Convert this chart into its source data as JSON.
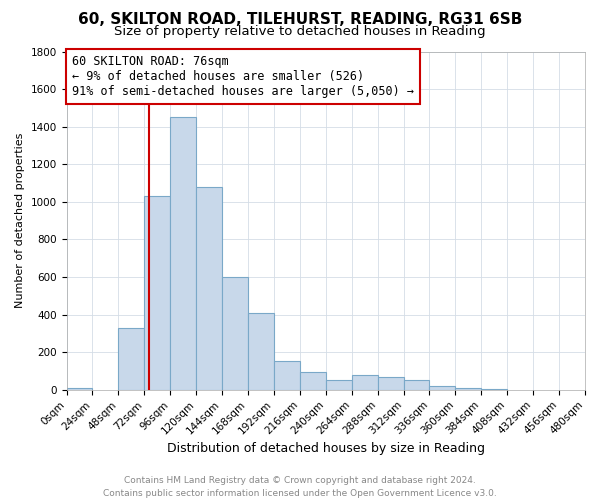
{
  "title_line1": "60, SKILTON ROAD, TILEHURST, READING, RG31 6SB",
  "title_line2": "Size of property relative to detached houses in Reading",
  "xlabel": "Distribution of detached houses by size in Reading",
  "ylabel": "Number of detached properties",
  "bin_edges": [
    0,
    24,
    48,
    72,
    96,
    120,
    144,
    168,
    192,
    216,
    240,
    264,
    288,
    312,
    336,
    360,
    384,
    408,
    432,
    456,
    480
  ],
  "bar_heights": [
    10,
    0,
    330,
    1030,
    1450,
    1080,
    600,
    410,
    155,
    95,
    50,
    80,
    70,
    50,
    20,
    10,
    5,
    0,
    0,
    0
  ],
  "bar_color": "#c8d8ea",
  "bar_edge_color": "#7aa8c8",
  "bar_linewidth": 0.8,
  "property_line_x": 76,
  "property_line_color": "#cc0000",
  "annotation_text": "60 SKILTON ROAD: 76sqm\n← 9% of detached houses are smaller (526)\n91% of semi-detached houses are larger (5,050) →",
  "annotation_box_color": "#ffffff",
  "annotation_box_edge": "#cc0000",
  "annotation_fontsize": 8.5,
  "ylim": [
    0,
    1800
  ],
  "xlim": [
    0,
    480
  ],
  "title_fontsize1": 11,
  "title_fontsize2": 9.5,
  "xlabel_fontsize": 9,
  "ylabel_fontsize": 8,
  "tick_fontsize": 7.5,
  "grid_color": "#d4dde6",
  "footer_line1": "Contains HM Land Registry data © Crown copyright and database right 2024.",
  "footer_line2": "Contains public sector information licensed under the Open Government Licence v3.0.",
  "footer_fontsize": 6.5,
  "footer_color": "#888888"
}
